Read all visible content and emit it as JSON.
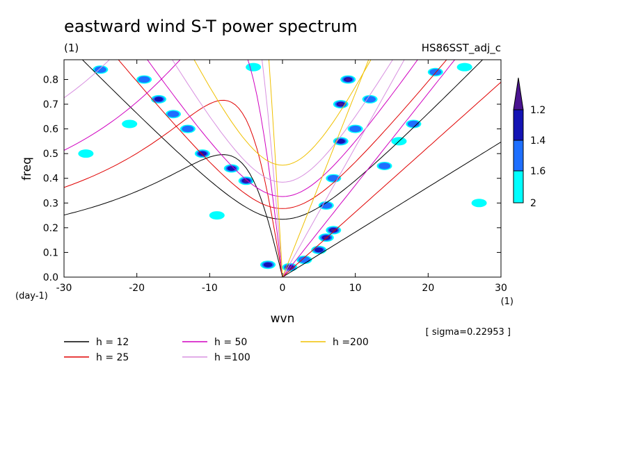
{
  "chart_data": {
    "type": "heatmap",
    "title": "eastward wind S-T power spectrum",
    "subtitle_left": "(1)",
    "subtitle_right": "HS86SST_adj_c",
    "xlabel": "wvn",
    "ylabel": "freq",
    "x_unit": "(1)",
    "y_unit": "(day-1)",
    "xlim": [
      -30,
      30
    ],
    "ylim": [
      0,
      0.88
    ],
    "xticks": [
      -30,
      -20,
      -10,
      0,
      10,
      20,
      30
    ],
    "yticks": [
      0.0,
      0.1,
      0.2,
      0.3,
      0.4,
      0.5,
      0.6,
      0.7,
      0.8
    ],
    "ytick_labels": [
      "0.0",
      "0.1",
      "0.2",
      "0.3",
      "0.4",
      "0.5",
      "0.6",
      "0.7",
      "0.8"
    ],
    "sigma_text": "[ sigma=0.22953 ]",
    "colorbar": {
      "levels": [
        1.2,
        1.4,
        1.6,
        2
      ],
      "labels": [
        "1.2",
        "1.4",
        "1.6",
        "2"
      ],
      "colors": [
        "#00ffff",
        "#1e6fff",
        "#1414b4",
        "#4a1490"
      ]
    },
    "dispersion_curves": [
      {
        "label": "h = 12",
        "h": 12,
        "color": "#000000"
      },
      {
        "label": "h = 25",
        "h": 25,
        "color": "#e00000"
      },
      {
        "label": "h = 50",
        "h": 50,
        "color": "#d000c0"
      },
      {
        "label": "h =100",
        "h": 100,
        "color": "#d890e0"
      },
      {
        "label": "h =200",
        "h": 200,
        "color": "#f0c000"
      }
    ],
    "power_blobs": [
      {
        "x": -25,
        "y": 0.84,
        "level": 2
      },
      {
        "x": -19,
        "y": 0.8,
        "level": 2
      },
      {
        "x": -17,
        "y": 0.72,
        "level": 3
      },
      {
        "x": -15,
        "y": 0.66,
        "level": 2
      },
      {
        "x": -13,
        "y": 0.6,
        "level": 2
      },
      {
        "x": -11,
        "y": 0.5,
        "level": 3
      },
      {
        "x": -7,
        "y": 0.44,
        "level": 3
      },
      {
        "x": -5,
        "y": 0.39,
        "level": 4
      },
      {
        "x": -21,
        "y": 0.62,
        "level": 1
      },
      {
        "x": -27,
        "y": 0.5,
        "level": 1
      },
      {
        "x": -9,
        "y": 0.25,
        "level": 1
      },
      {
        "x": -2,
        "y": 0.05,
        "level": 3
      },
      {
        "x": 1,
        "y": 0.04,
        "level": 4
      },
      {
        "x": 3,
        "y": 0.07,
        "level": 2
      },
      {
        "x": 5,
        "y": 0.11,
        "level": 3
      },
      {
        "x": 6,
        "y": 0.16,
        "level": 4
      },
      {
        "x": 7,
        "y": 0.19,
        "level": 4
      },
      {
        "x": 6,
        "y": 0.29,
        "level": 2
      },
      {
        "x": 7,
        "y": 0.4,
        "level": 2
      },
      {
        "x": 8,
        "y": 0.55,
        "level": 3
      },
      {
        "x": 8,
        "y": 0.7,
        "level": 4
      },
      {
        "x": 9,
        "y": 0.8,
        "level": 4
      },
      {
        "x": 10,
        "y": 0.6,
        "level": 2
      },
      {
        "x": 12,
        "y": 0.72,
        "level": 2
      },
      {
        "x": 14,
        "y": 0.45,
        "level": 2
      },
      {
        "x": 16,
        "y": 0.55,
        "level": 1
      },
      {
        "x": 18,
        "y": 0.62,
        "level": 2
      },
      {
        "x": 21,
        "y": 0.83,
        "level": 2
      },
      {
        "x": 25,
        "y": 0.85,
        "level": 1
      },
      {
        "x": 27,
        "y": 0.3,
        "level": 1
      },
      {
        "x": -4,
        "y": 0.85,
        "level": 1
      }
    ]
  }
}
